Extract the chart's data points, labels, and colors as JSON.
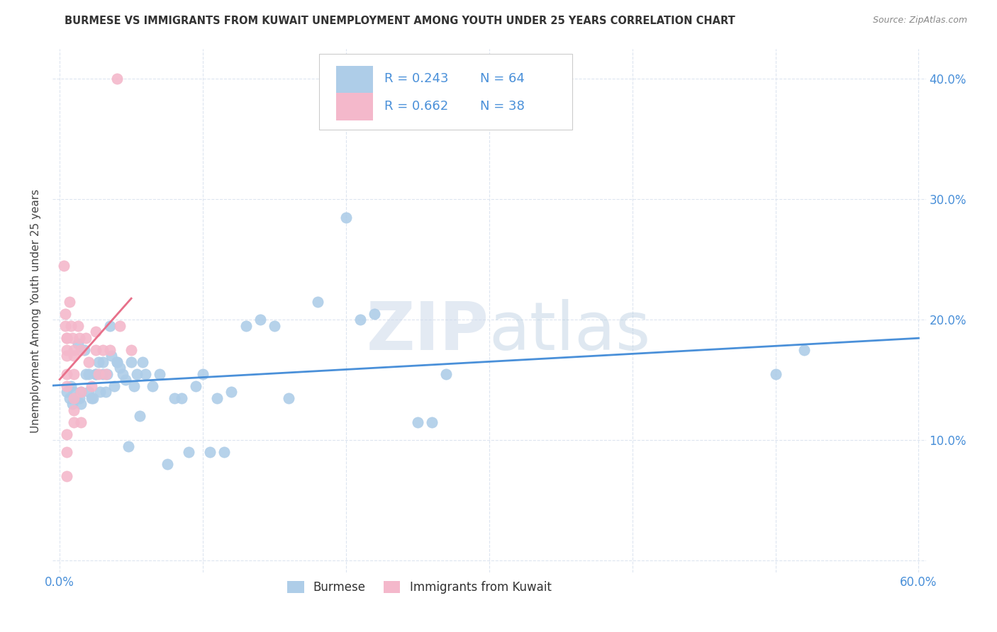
{
  "title": "BURMESE VS IMMIGRANTS FROM KUWAIT UNEMPLOYMENT AMONG YOUTH UNDER 25 YEARS CORRELATION CHART",
  "source": "Source: ZipAtlas.com",
  "ylabel": "Unemployment Among Youth under 25 years",
  "legend_label1": "Burmese",
  "legend_label2": "Immigrants from Kuwait",
  "R1": 0.243,
  "N1": 64,
  "R2": 0.662,
  "N2": 38,
  "color1": "#aecde8",
  "color2": "#f4b8cb",
  "line_color1": "#4a90d9",
  "line_color2": "#e8708a",
  "dash_color": "#c8c8c8",
  "xlim": [
    -0.005,
    0.605
  ],
  "ylim": [
    -0.01,
    0.425
  ],
  "xtick_positions": [
    0.0,
    0.1,
    0.2,
    0.3,
    0.4,
    0.5,
    0.6
  ],
  "xtick_labels": [
    "0.0%",
    "",
    "",
    "",
    "",
    "",
    "60.0%"
  ],
  "ytick_positions": [
    0.0,
    0.1,
    0.2,
    0.3,
    0.4
  ],
  "ytick_labels_right": [
    "",
    "10.0%",
    "20.0%",
    "30.0%",
    "40.0%"
  ],
  "grid_color": "#dde5f0",
  "watermark_zip": "ZIP",
  "watermark_atlas": "atlas",
  "burmese_x": [
    0.005,
    0.007,
    0.008,
    0.009,
    0.01,
    0.012,
    0.013,
    0.014,
    0.015,
    0.015,
    0.017,
    0.018,
    0.02,
    0.02,
    0.022,
    0.023,
    0.025,
    0.025,
    0.027,
    0.028,
    0.03,
    0.03,
    0.032,
    0.033,
    0.035,
    0.036,
    0.038,
    0.04,
    0.04,
    0.042,
    0.044,
    0.046,
    0.048,
    0.05,
    0.052,
    0.054,
    0.056,
    0.058,
    0.06,
    0.065,
    0.07,
    0.075,
    0.08,
    0.085,
    0.09,
    0.095,
    0.1,
    0.105,
    0.11,
    0.115,
    0.12,
    0.13,
    0.14,
    0.15,
    0.16,
    0.18,
    0.2,
    0.21,
    0.22,
    0.25,
    0.26,
    0.27,
    0.5,
    0.52
  ],
  "burmese_y": [
    0.14,
    0.135,
    0.145,
    0.13,
    0.14,
    0.135,
    0.18,
    0.135,
    0.14,
    0.13,
    0.175,
    0.155,
    0.155,
    0.14,
    0.135,
    0.135,
    0.155,
    0.155,
    0.165,
    0.14,
    0.165,
    0.155,
    0.14,
    0.155,
    0.195,
    0.17,
    0.145,
    0.165,
    0.165,
    0.16,
    0.155,
    0.15,
    0.095,
    0.165,
    0.145,
    0.155,
    0.12,
    0.165,
    0.155,
    0.145,
    0.155,
    0.08,
    0.135,
    0.135,
    0.09,
    0.145,
    0.155,
    0.09,
    0.135,
    0.09,
    0.14,
    0.195,
    0.2,
    0.195,
    0.135,
    0.215,
    0.285,
    0.2,
    0.205,
    0.115,
    0.115,
    0.155,
    0.155,
    0.175
  ],
  "kuwait_x": [
    0.003,
    0.004,
    0.004,
    0.005,
    0.005,
    0.005,
    0.005,
    0.005,
    0.005,
    0.005,
    0.005,
    0.005,
    0.007,
    0.008,
    0.009,
    0.01,
    0.01,
    0.01,
    0.01,
    0.01,
    0.01,
    0.013,
    0.014,
    0.015,
    0.015,
    0.015,
    0.018,
    0.02,
    0.022,
    0.025,
    0.025,
    0.027,
    0.03,
    0.032,
    0.035,
    0.04,
    0.042,
    0.05
  ],
  "kuwait_y": [
    0.245,
    0.205,
    0.195,
    0.185,
    0.185,
    0.175,
    0.17,
    0.155,
    0.145,
    0.105,
    0.09,
    0.07,
    0.215,
    0.195,
    0.185,
    0.175,
    0.17,
    0.155,
    0.135,
    0.125,
    0.115,
    0.195,
    0.185,
    0.175,
    0.14,
    0.115,
    0.185,
    0.165,
    0.145,
    0.19,
    0.175,
    0.155,
    0.175,
    0.155,
    0.175,
    0.4,
    0.195,
    0.175
  ]
}
